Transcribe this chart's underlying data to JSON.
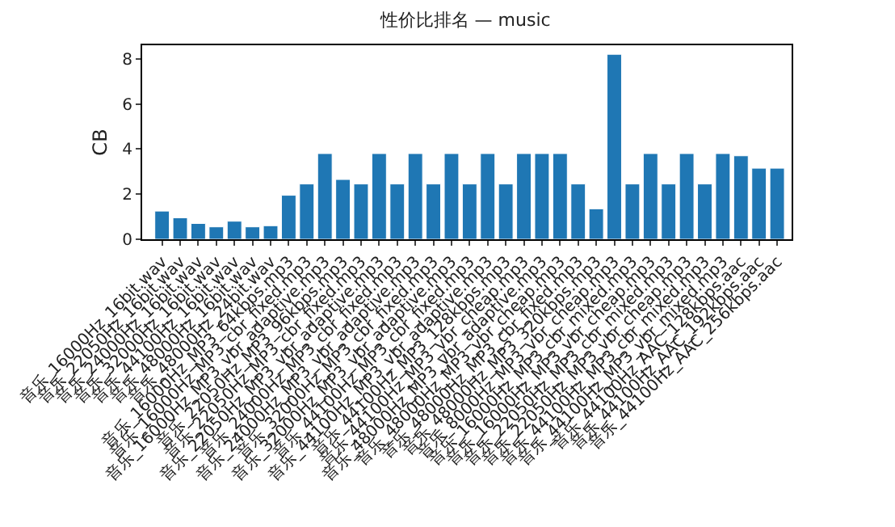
{
  "chart_data": {
    "type": "bar",
    "title": "性价比排名 — music",
    "ylabel": "CB",
    "categories": [
      "音乐_16000Hz_16bit.wav",
      "音乐_22050Hz_16bit.wav",
      "音乐_24000Hz_16bit.wav",
      "音乐_32000Hz_16bit.wav",
      "音乐_44100Hz_16bit.wav",
      "音乐_48000Hz_16bit.wav",
      "音乐_48000Hz_24bit.wav",
      "音乐_16000Hz_MP3_64kbps.mp3",
      "音乐_16000Hz_MP3_cbr_fixed.mp3",
      "音乐_16000Hz_MP3_vbr_adaptive.mp3",
      "音乐_22050Hz_MP3_96kbps.mp3",
      "音乐_22050Hz_MP3_cbr_fixed.mp3",
      "音乐_22050Hz_MP3_vbr_adaptive.mp3",
      "音乐_24000Hz_MP3_cbr_fixed.mp3",
      "音乐_24000Hz_MP3_vbr_adaptive.mp3",
      "音乐_32000Hz_MP3_cbr_fixed.mp3",
      "音乐_32000Hz_MP3_vbr_adaptive.mp3",
      "音乐_44100Hz_MP3_cbr_fixed.mp3",
      "音乐_44100Hz_MP3_vbr_adaptive.mp3",
      "音乐_44100Hz_MP3_128kbps.mp3",
      "音乐_44100Hz_MP3_vbr_cheap.mp3",
      "音乐_48000Hz_MP3_vbr_adaptive.mp3",
      "音乐_48000Hz_MP3_vbr_cheap.mp3",
      "音乐_48000Hz_MP3_cbr_fixed.mp3",
      "音乐_48000Hz_MP3_320kbps.mp3",
      "音乐_8000Hz_MP3_vbr_cheap.mp3",
      "音乐_16000Hz_MP3_cbr_mixed.mp3",
      "音乐_16000Hz_MP3_vbr_cheap.mp3",
      "音乐_22050Hz_MP3_cbr_mixed.mp3",
      "音乐_22050Hz_MP3_vbr_cheap.mp3",
      "音乐_44100Hz_MP3_cbr_mixed.mp3",
      "音乐_44100Hz_MP3_vbr_mixed.mp3",
      "音乐_44100Hz_AAC_128kbps.aac",
      "音乐_44100Hz_AAC_192kbps.aac",
      "音乐_44100Hz_AAC_256kbps.aac"
    ],
    "values": [
      1.25,
      0.95,
      0.7,
      0.55,
      0.8,
      0.55,
      0.6,
      1.95,
      2.45,
      3.8,
      2.65,
      2.45,
      3.8,
      2.45,
      3.8,
      2.45,
      3.8,
      2.45,
      3.8,
      2.45,
      3.8,
      3.8,
      3.8,
      2.45,
      1.35,
      8.2,
      2.45,
      3.8,
      2.45,
      3.8,
      2.45,
      3.8,
      3.7,
      3.15,
      3.15
    ],
    "color": "#1f77b4",
    "ylim": [
      0,
      8.6
    ],
    "yticks": [
      0,
      2,
      4,
      6,
      8
    ]
  }
}
